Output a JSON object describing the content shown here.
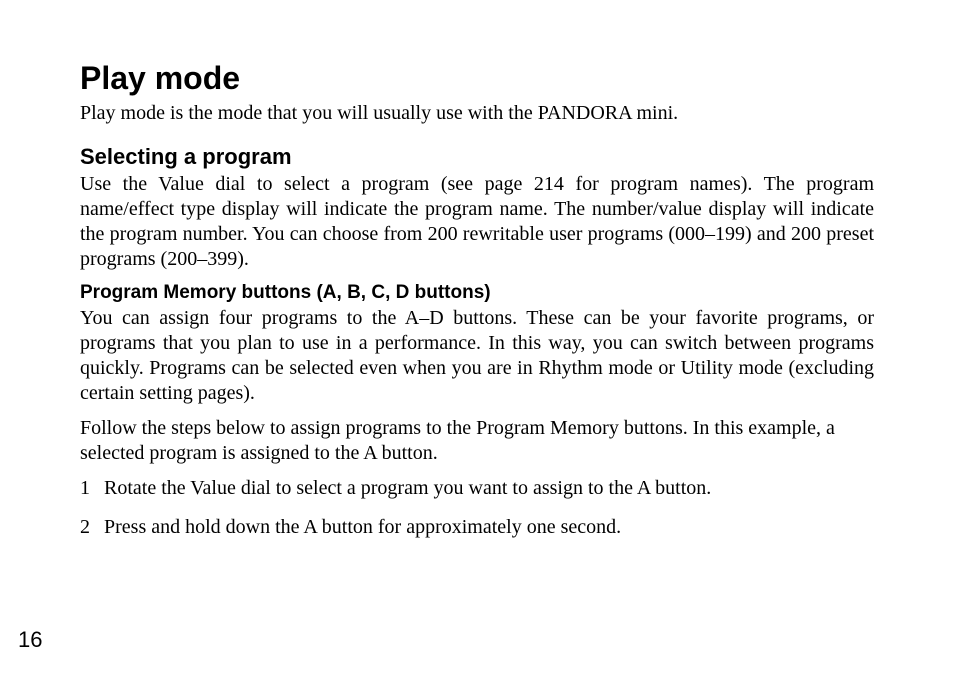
{
  "page": {
    "title": "Play mode",
    "intro": "Play mode is the mode that you will usually use with the PANDORA mini.",
    "section1": {
      "heading": "Selecting a program",
      "para": "Use the Value dial to select a program (see page 214 for program names). The program name/effect type display will indicate the program name. The number/value display will indicate the program number. You can choose from 200 rewritable user programs (000–199) and 200 preset programs (200–399)."
    },
    "section2": {
      "heading": "Program Memory buttons (A, B, C, D buttons)",
      "para1": "You can assign four programs to the A–D buttons. These can be your favorite programs, or programs that you plan to use in a performance. In this way, you can switch between programs quickly. Programs can be selected even when you are in Rhythm mode or Utility mode (excluding certain setting pages).",
      "para2": "Follow the steps below to assign programs to the Program Memory buttons. In this example, a selected program is assigned to the A button.",
      "steps": [
        {
          "n": "1",
          "t": "Rotate the Value dial to select a program you want to assign to the A button."
        },
        {
          "n": "2",
          "t": "Press and hold down the A button for approximately one second."
        }
      ]
    },
    "page_number": "16"
  }
}
